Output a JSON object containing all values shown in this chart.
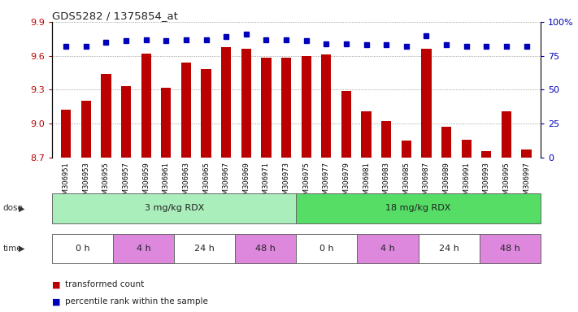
{
  "title": "GDS5282 / 1375854_at",
  "samples": [
    "GSM306951",
    "GSM306953",
    "GSM306955",
    "GSM306957",
    "GSM306959",
    "GSM306961",
    "GSM306963",
    "GSM306965",
    "GSM306967",
    "GSM306969",
    "GSM306971",
    "GSM306973",
    "GSM306975",
    "GSM306977",
    "GSM306979",
    "GSM306981",
    "GSM306983",
    "GSM306985",
    "GSM306987",
    "GSM306989",
    "GSM306991",
    "GSM306993",
    "GSM306995",
    "GSM306997"
  ],
  "transformed_count": [
    9.12,
    9.2,
    9.44,
    9.33,
    9.62,
    9.32,
    9.54,
    9.48,
    9.68,
    9.66,
    9.58,
    9.58,
    9.6,
    9.61,
    9.29,
    9.11,
    9.02,
    8.85,
    9.66,
    8.97,
    8.86,
    8.76,
    9.11,
    8.77
  ],
  "percentile_rank": [
    82,
    82,
    85,
    86,
    87,
    86,
    87,
    87,
    89,
    91,
    87,
    87,
    86,
    84,
    84,
    83,
    83,
    82,
    90,
    83,
    82,
    82,
    82,
    82
  ],
  "bar_color": "#bb0000",
  "dot_color": "#0000bb",
  "ylim_left": [
    8.7,
    9.9
  ],
  "ylim_right": [
    0,
    100
  ],
  "yticks_left": [
    8.7,
    9.0,
    9.3,
    9.6,
    9.9
  ],
  "yticks_right": [
    0,
    25,
    50,
    75,
    100
  ],
  "dose_groups": [
    {
      "label": "3 mg/kg RDX",
      "start": 0,
      "end": 11,
      "color": "#aaeebb"
    },
    {
      "label": "18 mg/kg RDX",
      "start": 12,
      "end": 23,
      "color": "#55dd66"
    }
  ],
  "time_colors_alt": [
    "#ffffff",
    "#dd88dd",
    "#ffffff",
    "#dd88dd",
    "#ffffff",
    "#dd88dd",
    "#ffffff",
    "#dd88dd"
  ],
  "time_groups": [
    {
      "label": "0 h",
      "start": 0,
      "end": 2
    },
    {
      "label": "4 h",
      "start": 3,
      "end": 5
    },
    {
      "label": "24 h",
      "start": 6,
      "end": 8
    },
    {
      "label": "48 h",
      "start": 9,
      "end": 11
    },
    {
      "label": "0 h",
      "start": 12,
      "end": 14
    },
    {
      "label": "4 h",
      "start": 15,
      "end": 17
    },
    {
      "label": "24 h",
      "start": 18,
      "end": 20
    },
    {
      "label": "48 h",
      "start": 21,
      "end": 23
    }
  ],
  "bg_color": "#ffffff",
  "plot_bg": "#ffffff",
  "bar_width": 0.5
}
